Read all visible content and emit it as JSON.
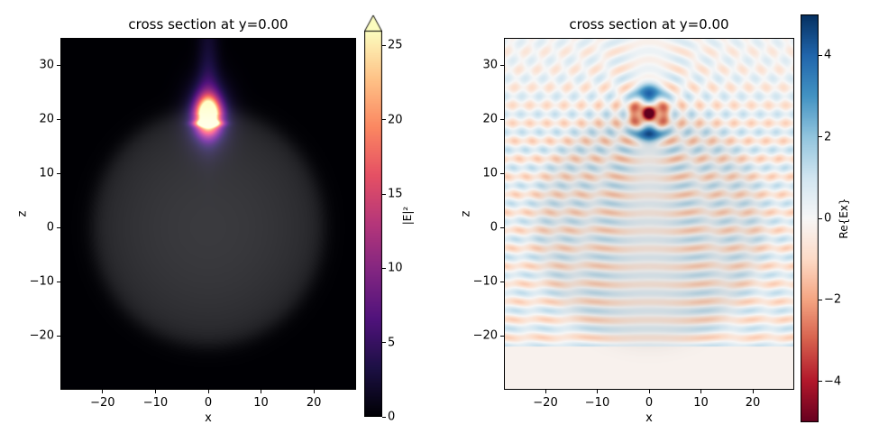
{
  "figure": {
    "background": "#ffffff"
  },
  "chart_data": [
    {
      "id": "intensity-cross-section",
      "type": "heatmap",
      "title": "cross section at y=0.00",
      "xlabel": "x",
      "ylabel": "z",
      "xlim": [
        -28,
        28
      ],
      "ylim": [
        -30,
        35
      ],
      "xticks": [
        -20,
        -10,
        0,
        10,
        20
      ],
      "yticks": [
        -20,
        -10,
        0,
        10,
        20,
        30
      ],
      "colormap": "magma",
      "grid": false,
      "colorbar": {
        "label": "|E|²",
        "min": 0,
        "max": 26,
        "ticks": [
          0,
          5,
          10,
          15,
          20,
          25
        ],
        "extend_max": true
      },
      "field": {
        "model": "intensity",
        "description": "dipole hotspot above a dielectric sphere, |E|^2 saturating at colorbar max",
        "source": {
          "x": 0,
          "z": 20.8,
          "peak": 30,
          "sigma_x": 1.5,
          "sigma_z": 2.2
        },
        "halo": {
          "amp": 7,
          "sigma_x": 2.8,
          "sigma_z": 4.2
        },
        "slab": {
          "z": 19.2,
          "amp": 20,
          "sigma_x": 1.6,
          "sigma_z": 0.4
        },
        "plume": {
          "amp": 5,
          "sigma_x": 1.4,
          "decay": 16
        },
        "tail": {
          "amp": 3,
          "sigma_x": 1.2,
          "decay": 3.5
        },
        "sphere": {
          "cx": 0,
          "cz": 0,
          "radius": 22,
          "gray": 58
        },
        "substrate_z": -22
      }
    },
    {
      "id": "re-ex-cross-section",
      "type": "heatmap",
      "title": "cross section at y=0.00",
      "xlabel": "x",
      "ylabel": "z",
      "xlim": [
        -28,
        28
      ],
      "ylim": [
        -30,
        35
      ],
      "xticks": [
        -20,
        -10,
        0,
        10,
        20
      ],
      "yticks": [
        -20,
        -10,
        0,
        10,
        20,
        30
      ],
      "colormap": "RdBu",
      "grid": false,
      "colorbar": {
        "label": "Re{Ex}",
        "min": -5,
        "max": 5,
        "ticks": [
          -4,
          -2,
          0,
          2,
          4
        ],
        "extend_max": false
      },
      "field": {
        "model": "re_ex",
        "description": "real part of Ex: dipole at (0,21) with standing-wave fringes above substrate",
        "wavelength": 3.3,
        "source": {
          "x": 0,
          "z": 21
        },
        "blobs": [
          {
            "x": 0,
            "z": 21.0,
            "amp": -6.5,
            "sx": 2.0,
            "sz": 1.4
          },
          {
            "x": 0,
            "z": 24.4,
            "amp": 4.8,
            "sx": 1.6,
            "sz": 1.3
          },
          {
            "x": 0,
            "z": 17.6,
            "amp": 4.8,
            "sx": 1.6,
            "sz": 1.3
          }
        ],
        "ripple": {
          "amp": 2.0,
          "min_r": 1.5
        },
        "stripes": {
          "amp": 0.95,
          "phase_ref": -22,
          "fade_start": 14,
          "fade_end": 34,
          "fade_min": 0.3
        },
        "sphere": {
          "cx": 0,
          "cz": 0,
          "radius": 22,
          "shade": 0.07
        },
        "substrate_z": -22,
        "below_value": -0.2
      }
    }
  ]
}
